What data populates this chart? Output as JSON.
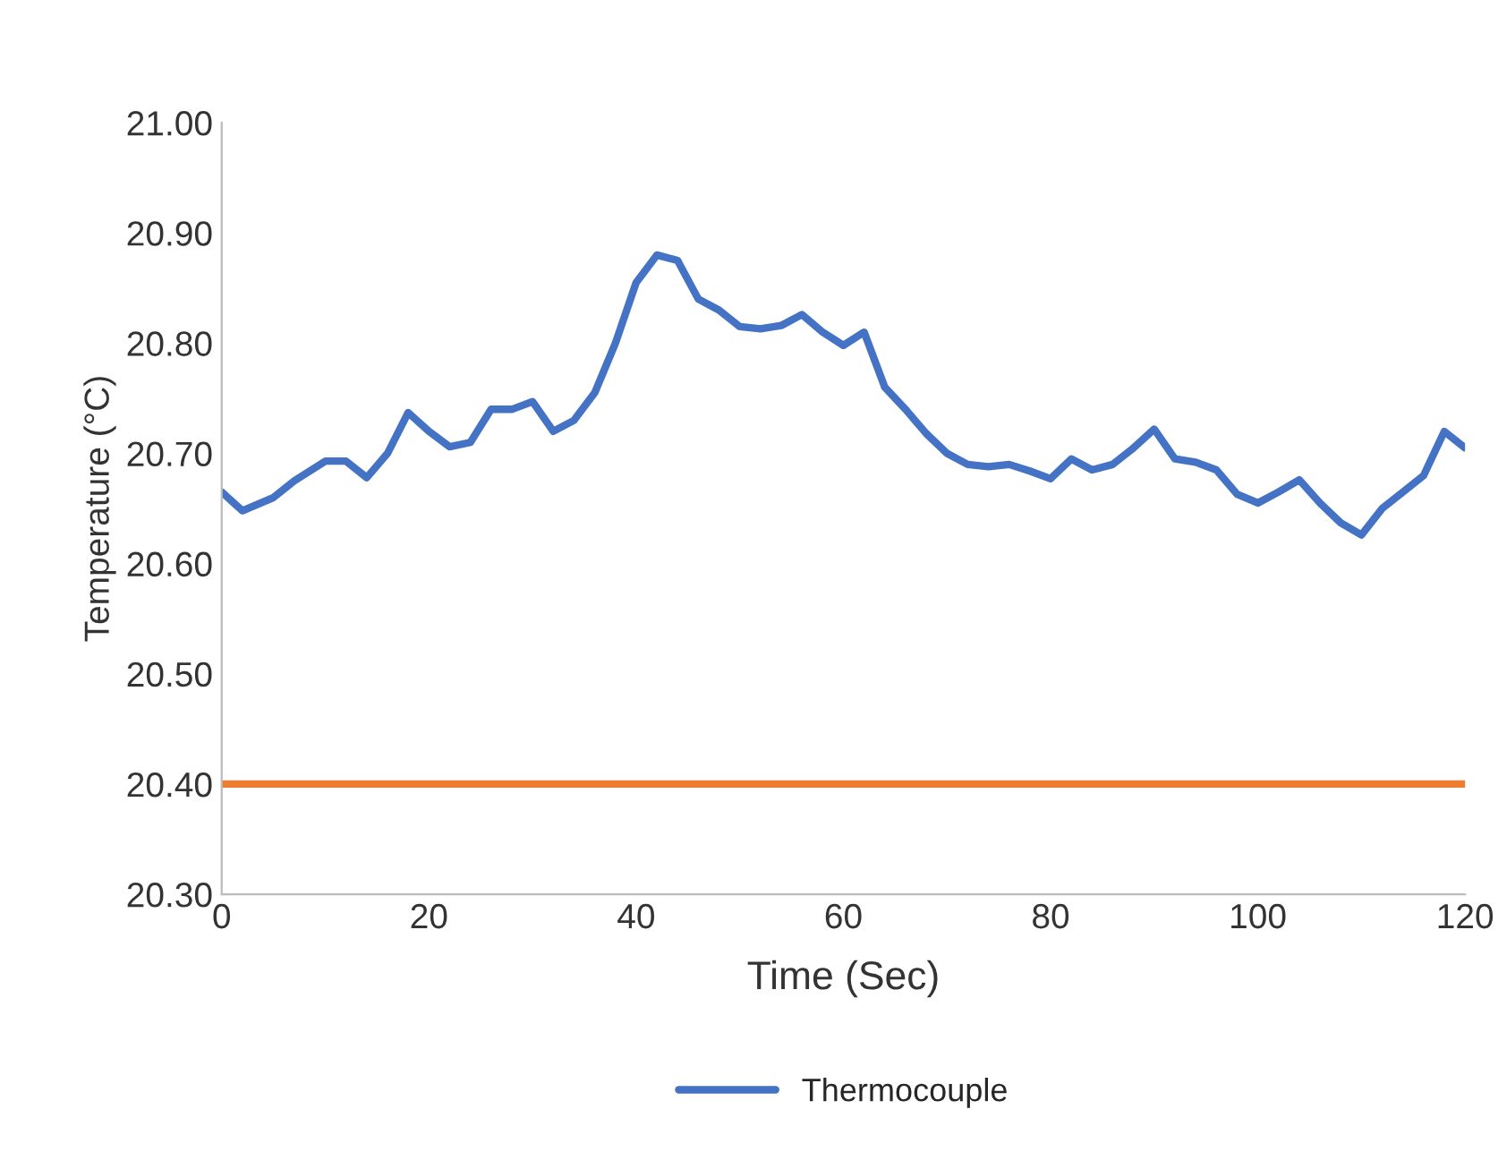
{
  "chart_data": {
    "type": "line",
    "xlabel": "Time (Sec)",
    "ylabel": "Temperature (°C)",
    "xlim": [
      0,
      120
    ],
    "xticks": [
      0,
      20,
      40,
      60,
      80,
      100,
      120
    ],
    "ylim": [
      20.3,
      21.0
    ],
    "yticks": [
      {
        "value": 20.3,
        "label": "20.30"
      },
      {
        "value": 20.4,
        "label": "20.40"
      },
      {
        "value": 20.5,
        "label": "20.50"
      },
      {
        "value": 20.6,
        "label": "20.60"
      },
      {
        "value": 20.7,
        "label": "20.70"
      },
      {
        "value": 20.8,
        "label": "20.80"
      },
      {
        "value": 20.9,
        "label": "20.90"
      },
      {
        "value": 21.0,
        "label": "21.00"
      }
    ],
    "grid": false,
    "legend": "bottom",
    "marker": "none",
    "line_style": "solid",
    "series": [
      {
        "name": "Thermocouple",
        "color": "#4472c4",
        "x": [
          0,
          2,
          5,
          7,
          10,
          12,
          14,
          16,
          18,
          20,
          22,
          24,
          26,
          28,
          30,
          32,
          34,
          36,
          38,
          40,
          42,
          44,
          46,
          48,
          50,
          52,
          54,
          56,
          58,
          60,
          62,
          64,
          66,
          68,
          70,
          72,
          74,
          76,
          78,
          80,
          82,
          84,
          86,
          88,
          90,
          92,
          94,
          96,
          98,
          100,
          102,
          104,
          106,
          108,
          110,
          112,
          114,
          116,
          118,
          120
        ],
        "values": [
          20.665,
          20.648,
          20.66,
          20.675,
          20.693,
          20.693,
          20.678,
          20.7,
          20.737,
          20.72,
          20.706,
          20.71,
          20.74,
          20.74,
          20.747,
          20.72,
          20.73,
          20.755,
          20.8,
          20.855,
          20.88,
          20.875,
          20.84,
          20.83,
          20.815,
          20.813,
          20.816,
          20.826,
          20.81,
          20.798,
          20.81,
          20.76,
          20.74,
          20.718,
          20.7,
          20.69,
          20.688,
          20.69,
          20.684,
          20.677,
          20.695,
          20.685,
          20.69,
          20.705,
          20.722,
          20.695,
          20.692,
          20.685,
          20.663,
          20.655,
          20.665,
          20.676,
          20.655,
          20.637,
          20.626,
          20.65,
          20.665,
          20.68,
          20.72,
          20.705
        ]
      },
      {
        "color": "#ed7d31",
        "x": [
          0,
          120
        ],
        "values": [
          20.4,
          20.4
        ]
      }
    ]
  }
}
